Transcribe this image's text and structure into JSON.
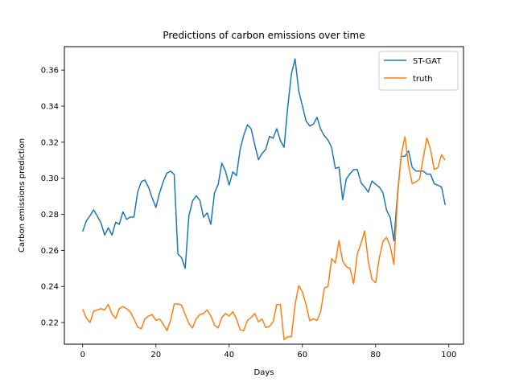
{
  "chart_data": {
    "type": "line",
    "title": "Predictions of carbon emissions over time",
    "xlabel": "Days",
    "ylabel": "Carbon emissions prediction",
    "xlim": [
      -5,
      104
    ],
    "ylim": [
      0.208,
      0.373
    ],
    "xticks": [
      0,
      20,
      40,
      60,
      80,
      100
    ],
    "yticks": [
      0.22,
      0.24,
      0.26,
      0.28,
      0.3,
      0.32,
      0.34,
      0.36
    ],
    "ytick_labels": [
      "0.22",
      "0.24",
      "0.26",
      "0.28",
      "0.30",
      "0.32",
      "0.34",
      "0.36"
    ],
    "grid": false,
    "legend_position": "top-right",
    "series": [
      {
        "name": "ST-GAT",
        "color": "#1f77b4",
        "values": [
          0.2705,
          0.2764,
          0.2792,
          0.2825,
          0.279,
          0.2752,
          0.2685,
          0.2725,
          0.2685,
          0.2756,
          0.2745,
          0.2814,
          0.2772,
          0.2785,
          0.2785,
          0.2922,
          0.2981,
          0.299,
          0.2949,
          0.289,
          0.2838,
          0.2919,
          0.2981,
          0.3029,
          0.3039,
          0.3021,
          0.258,
          0.256,
          0.25,
          0.2792,
          0.2874,
          0.2903,
          0.2878,
          0.2784,
          0.2808,
          0.2745,
          0.2919,
          0.2966,
          0.3084,
          0.3039,
          0.2962,
          0.3036,
          0.3015,
          0.316,
          0.324,
          0.3296,
          0.3275,
          0.3185,
          0.3103,
          0.3138,
          0.316,
          0.3233,
          0.3222,
          0.3275,
          0.3209,
          0.3172,
          0.3395,
          0.3578,
          0.3662,
          0.3484,
          0.3402,
          0.3318,
          0.329,
          0.33,
          0.3338,
          0.3272,
          0.3236,
          0.3212,
          0.317,
          0.3055,
          0.3061,
          0.2881,
          0.2996,
          0.3025,
          0.3048,
          0.3048,
          0.2976,
          0.2952,
          0.2923,
          0.2985,
          0.2966,
          0.2952,
          0.292,
          0.2822,
          0.2782,
          0.2652,
          0.292,
          0.3122,
          0.3122,
          0.3152,
          0.306,
          0.304,
          0.304,
          0.304,
          0.3023,
          0.3023,
          0.297,
          0.2961,
          0.2952,
          0.2852
        ]
      },
      {
        "name": "truth",
        "color": "#ff7f0e",
        "values": [
          0.2275,
          0.2225,
          0.22,
          0.2263,
          0.227,
          0.2277,
          0.227,
          0.23,
          0.2247,
          0.2223,
          0.2277,
          0.2289,
          0.2277,
          0.226,
          0.222,
          0.2175,
          0.2165,
          0.222,
          0.2236,
          0.2244,
          0.2212,
          0.222,
          0.2191,
          0.2155,
          0.221,
          0.2303,
          0.2303,
          0.2297,
          0.2244,
          0.2195,
          0.217,
          0.222,
          0.2244,
          0.225,
          0.227,
          0.2236,
          0.2186,
          0.217,
          0.2228,
          0.225,
          0.2236,
          0.226,
          0.222,
          0.216,
          0.2155,
          0.2212,
          0.2228,
          0.225,
          0.2204,
          0.222,
          0.2172,
          0.2178,
          0.2204,
          0.23,
          0.23,
          0.2105,
          0.2121,
          0.2121,
          0.2298,
          0.2405,
          0.237,
          0.23,
          0.221,
          0.222,
          0.2212,
          0.226,
          0.2391,
          0.24,
          0.2555,
          0.253,
          0.2654,
          0.254,
          0.251,
          0.25,
          0.2415,
          0.258,
          0.2638,
          0.2708,
          0.254,
          0.244,
          0.242,
          0.2557,
          0.265,
          0.2672,
          0.2623,
          0.2522,
          0.29,
          0.313,
          0.323,
          0.307,
          0.297,
          0.298,
          0.2995,
          0.311,
          0.3224,
          0.3159,
          0.3049,
          0.3059,
          0.3131,
          0.31
        ]
      }
    ]
  }
}
